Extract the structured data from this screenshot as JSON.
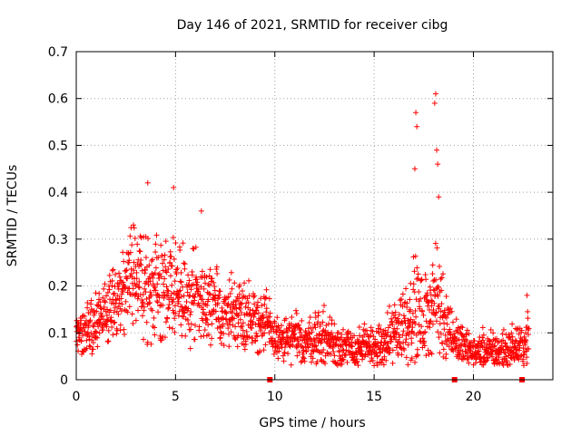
{
  "chart_data": {
    "type": "scatter",
    "title": "Day 146 of 2021, SRMTID for receiver cibg",
    "xlabel": "GPS time / hours",
    "ylabel": "SRMTID / TECUs",
    "xlim": [
      0,
      24
    ],
    "ylim": [
      0,
      0.7
    ],
    "xticks": [
      "0",
      "5",
      "10",
      "15",
      "20"
    ],
    "xtick_values": [
      0,
      5,
      10,
      15,
      20
    ],
    "yticks": [
      "0",
      "0.1",
      "0.2",
      "0.3",
      "0.4",
      "0.5",
      "0.6",
      "0.7"
    ],
    "ytick_values": [
      0,
      0.1,
      0.2,
      0.3,
      0.4,
      0.5,
      0.6,
      0.7
    ],
    "grid": true,
    "marker": "plus",
    "color": "#ff0000",
    "data_gap_markers_x": [
      9.75,
      19.05,
      22.45
    ],
    "envelope": {
      "description": "approximate mean level and spread of SRMTID vs GPS time (hours), sampled every 0.5 h",
      "x": [
        0.0,
        0.5,
        1.0,
        1.5,
        2.0,
        2.5,
        3.0,
        3.5,
        4.0,
        4.5,
        5.0,
        5.5,
        6.0,
        6.5,
        7.0,
        7.5,
        8.0,
        8.5,
        9.0,
        9.5,
        10.0,
        10.5,
        11.0,
        11.5,
        12.0,
        12.5,
        13.0,
        13.5,
        14.0,
        14.5,
        15.0,
        15.5,
        16.0,
        16.5,
        17.0,
        17.5,
        18.0,
        18.5,
        19.0,
        19.5,
        20.0,
        20.5,
        21.0,
        21.5,
        22.0,
        22.5,
        22.8
      ],
      "mean": [
        0.11,
        0.12,
        0.13,
        0.14,
        0.16,
        0.2,
        0.24,
        0.22,
        0.2,
        0.19,
        0.2,
        0.17,
        0.18,
        0.16,
        0.15,
        0.14,
        0.15,
        0.14,
        0.13,
        0.12,
        0.09,
        0.08,
        0.09,
        0.08,
        0.09,
        0.09,
        0.08,
        0.07,
        0.06,
        0.07,
        0.07,
        0.07,
        0.1,
        0.12,
        0.15,
        0.12,
        0.18,
        0.14,
        0.09,
        0.07,
        0.06,
        0.06,
        0.06,
        0.06,
        0.07,
        0.07,
        0.1
      ],
      "spread": [
        0.04,
        0.05,
        0.05,
        0.05,
        0.05,
        0.07,
        0.08,
        0.08,
        0.08,
        0.07,
        0.09,
        0.07,
        0.07,
        0.06,
        0.06,
        0.05,
        0.05,
        0.05,
        0.05,
        0.05,
        0.03,
        0.03,
        0.04,
        0.03,
        0.04,
        0.04,
        0.04,
        0.03,
        0.03,
        0.03,
        0.03,
        0.03,
        0.05,
        0.06,
        0.08,
        0.06,
        0.08,
        0.07,
        0.03,
        0.03,
        0.02,
        0.03,
        0.03,
        0.03,
        0.03,
        0.03,
        0.05
      ]
    },
    "peaks": [
      {
        "x": 3.6,
        "y": 0.42
      },
      {
        "x": 4.9,
        "y": 0.41
      },
      {
        "x": 6.3,
        "y": 0.36
      },
      {
        "x": 17.1,
        "y": 0.57
      },
      {
        "x": 17.15,
        "y": 0.54
      },
      {
        "x": 17.05,
        "y": 0.45
      },
      {
        "x": 18.1,
        "y": 0.61
      },
      {
        "x": 18.05,
        "y": 0.59
      },
      {
        "x": 18.15,
        "y": 0.49
      },
      {
        "x": 18.2,
        "y": 0.46
      },
      {
        "x": 18.25,
        "y": 0.39
      },
      {
        "x": 22.7,
        "y": 0.18
      }
    ]
  }
}
